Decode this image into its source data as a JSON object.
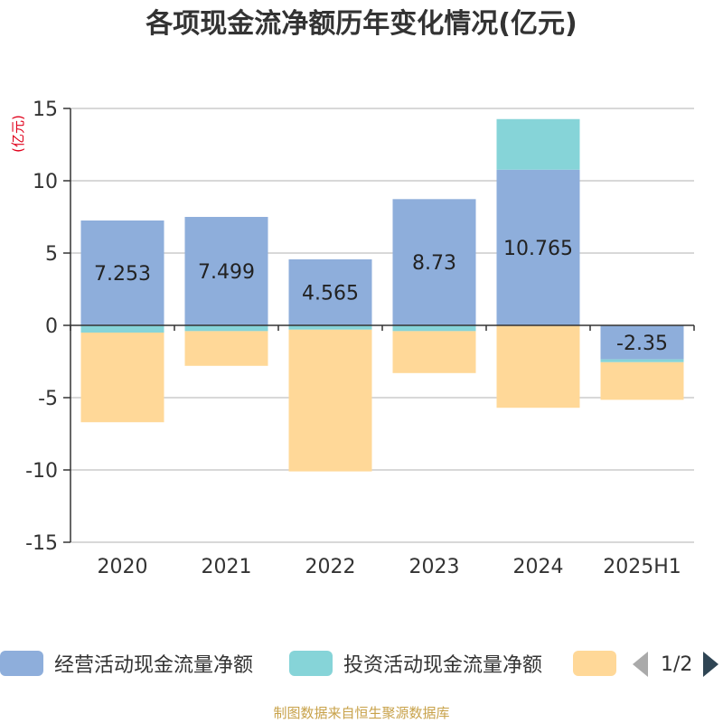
{
  "chart_data": {
    "type": "bar",
    "stacked": true,
    "title": "各项现金流净额历年变化情况(亿元)",
    "ylabel": "(亿元)",
    "ylim": [
      -15,
      15
    ],
    "yticks": [
      15,
      10,
      5,
      0,
      -5,
      -10,
      -15
    ],
    "grid": true,
    "categories": [
      "2020",
      "2021",
      "2022",
      "2023",
      "2024",
      "2025H1"
    ],
    "series": [
      {
        "name": "经营活动现金流量净额",
        "color": "#8eaedb",
        "values": [
          7.253,
          7.499,
          4.565,
          8.73,
          10.765,
          -2.35
        ],
        "labels": [
          "7.253",
          "7.499",
          "4.565",
          "8.73",
          "10.765",
          "-2.35"
        ]
      },
      {
        "name": "投资活动现金流量净额",
        "color": "#86d4d8",
        "values": [
          -0.5,
          -0.4,
          -0.3,
          -0.4,
          3.5,
          -0.2
        ]
      },
      {
        "name": "",
        "color": "#ffd898",
        "values": [
          -6.2,
          -2.4,
          -9.8,
          -2.9,
          -5.7,
          -2.6
        ]
      }
    ],
    "legend_position": "bottom"
  },
  "legend": {
    "page": "1/2"
  },
  "source": "制图数据来自恒生聚源数据库"
}
